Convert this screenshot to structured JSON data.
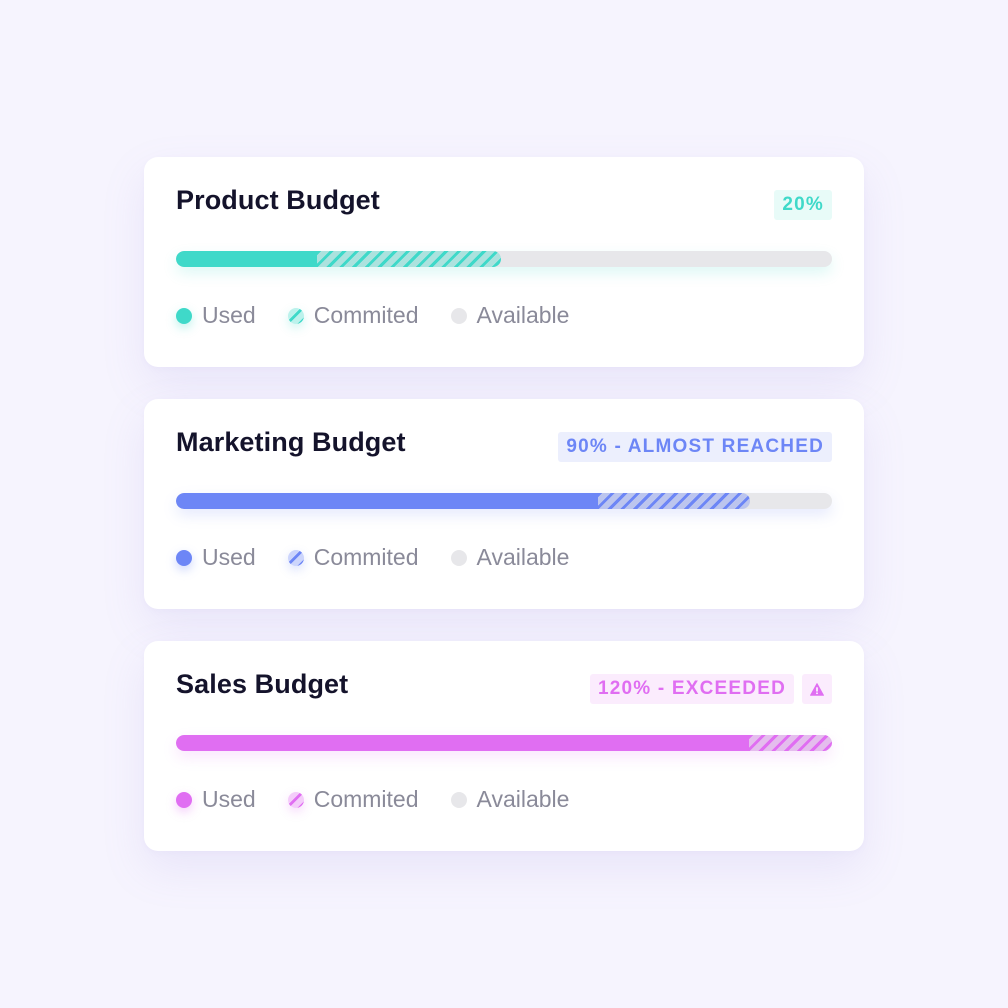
{
  "budgets": [
    {
      "title": "Product Budget",
      "badge": "20%",
      "badge_color": "#3fd9c9",
      "badge_bg": "#e8fbf8",
      "color": "#3fd9c9",
      "used_fraction": 0.215,
      "committed_fraction": 0.28,
      "warning": false,
      "legend": {
        "used": "Used",
        "committed": "Commited",
        "available": "Available"
      }
    },
    {
      "title": "Marketing Budget",
      "badge": "90% - ALMOST REACHED",
      "badge_color": "#6d86f6",
      "badge_bg": "#eceffd",
      "color": "#6d86f6",
      "used_fraction": 0.644,
      "committed_fraction": 0.232,
      "warning": false,
      "legend": {
        "used": "Used",
        "committed": "Commited",
        "available": "Available"
      }
    },
    {
      "title": "Sales Budget",
      "badge": "120% - EXCEEDED",
      "badge_color": "#e06ef2",
      "badge_bg": "#fbecfd",
      "color": "#e06ef2",
      "used_fraction": 0.874,
      "committed_fraction": 0.126,
      "warning": true,
      "warning_icon": "warning-triangle-icon",
      "legend": {
        "used": "Used",
        "committed": "Commited",
        "available": "Available"
      }
    }
  ],
  "available_color": "#e7e7ea"
}
